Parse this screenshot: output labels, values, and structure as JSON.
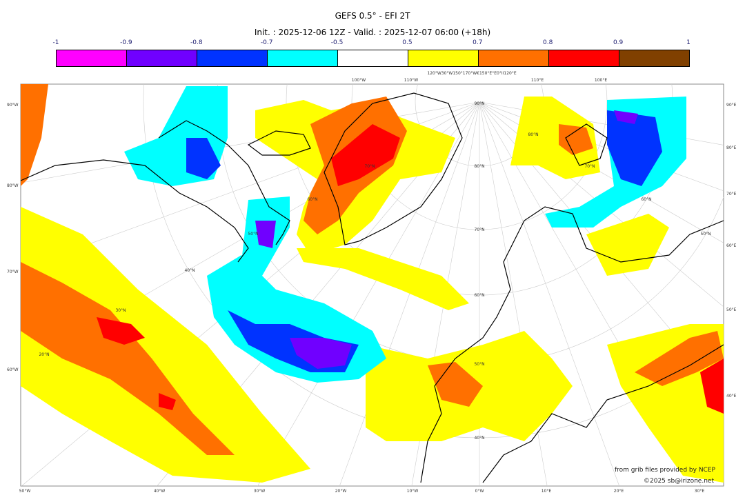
{
  "title": "GEFS 0.5° - EFI 2T",
  "subtitle": "Init. : 2025-12-06 12Z - Valid. : 2025-12-07 06:00 (+18h)",
  "colorbar": {
    "ticks": [
      "-1",
      "-0.9",
      "-0.8",
      "-0.7",
      "-0.5",
      "0.5",
      "0.7",
      "0.8",
      "0.9",
      "1"
    ],
    "colors": [
      "#ff00ff",
      "#7000ff",
      "#0033ff",
      "#00ffff",
      "#ffffff",
      "#ffff00",
      "#ff7000",
      "#ff0000",
      "#804000"
    ]
  },
  "graticule": {
    "left": [
      "90°W",
      "80°W",
      "70°W",
      "60°W"
    ],
    "right": [
      "90°E",
      "80°E",
      "70°E",
      "60°E",
      "50°E",
      "40°E"
    ],
    "bottom": [
      "50°W",
      "40°W",
      "30°W",
      "20°W",
      "10°W",
      "0°W",
      "10°E",
      "20°E",
      "30°E"
    ],
    "top": [
      "100°W",
      "110°W",
      "120°W30°W150°170°W€150°E°E0°II120°E",
      "110°E",
      "100°E"
    ],
    "interior": [
      "90°N",
      "80°N",
      "70°N",
      "60°N",
      "50°N",
      "40°N",
      "80°N",
      "70°N",
      "60°N",
      "50°N",
      "70°N",
      "60°N",
      "50°N",
      "40°N",
      "30°N",
      "20°N"
    ]
  },
  "credits": {
    "source": "from grib files provided by NCEP",
    "copyright": "©2025 sb@irizone.net"
  }
}
